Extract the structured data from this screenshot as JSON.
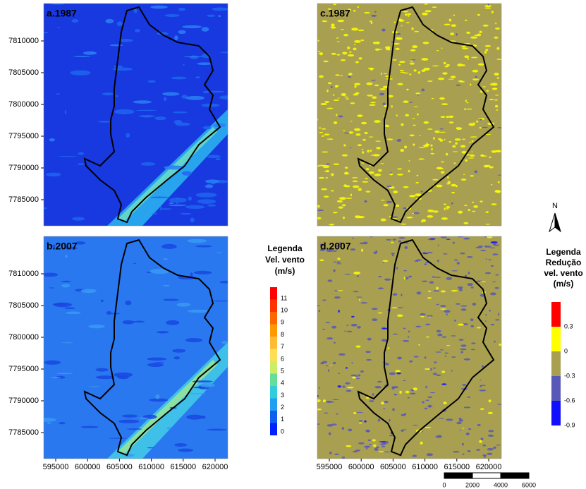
{
  "panels": [
    {
      "label": "a.1987"
    },
    {
      "label": "b.2007"
    },
    {
      "label": "c.1987"
    },
    {
      "label": "d.2007"
    }
  ],
  "yticks": [
    7810000,
    7805000,
    7800000,
    7795000,
    7790000,
    7785000
  ],
  "xticks": [
    595000,
    600000,
    605000,
    610000,
    615000,
    620000
  ],
  "legend_speed": {
    "title": [
      "Legenda",
      "Vel. vento",
      "(m/s)"
    ],
    "labels": [
      11,
      10,
      9,
      8,
      7,
      6,
      5,
      4,
      3,
      2,
      1,
      0
    ],
    "colors": [
      "#ff0000",
      "#ff3300",
      "#ff6600",
      "#ff9900",
      "#ffbb33",
      "#ffdd55",
      "#ccee66",
      "#66dd99",
      "#33ccdd",
      "#22a0f0",
      "#1060f0",
      "#0020ff"
    ]
  },
  "legend_reduction": {
    "title": [
      "Legenda",
      "Redução",
      "vel. vento",
      "(m/s)"
    ],
    "labels": [
      0.3,
      0,
      -0.3,
      -0.6,
      -0.9
    ],
    "colors": [
      "#ff0000",
      "#ffff00",
      "#a8a050",
      "#5858b8",
      "#1010ff"
    ]
  },
  "north": "N",
  "scale_bar": [
    0,
    2000,
    4000,
    6000
  ]
}
